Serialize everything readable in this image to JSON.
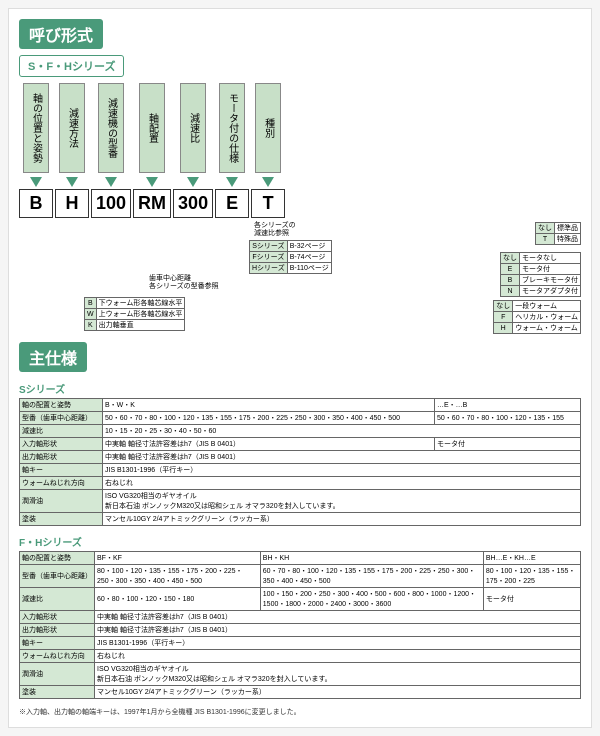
{
  "title1": "呼び形式",
  "series_label": "S・F・Hシリーズ",
  "columns": [
    {
      "head": "軸の位置と姿勢",
      "val": "B"
    },
    {
      "head": "減速方法",
      "val": "H"
    },
    {
      "head": "減速機の型番",
      "val": "100"
    },
    {
      "head": "軸配置",
      "val": "RM"
    },
    {
      "head": "減速比",
      "val": "300"
    },
    {
      "head": "モータ付の仕様",
      "val": "E"
    },
    {
      "head": "種別",
      "val": "T"
    }
  ],
  "tbl_kind": [
    [
      "なし",
      "標準品"
    ],
    [
      "T",
      "特殊品"
    ]
  ],
  "tbl_motor": [
    [
      "なし",
      "モータなし"
    ],
    [
      "E",
      "モータ付"
    ],
    [
      "B",
      "ブレーキモータ付"
    ],
    [
      "N",
      "モータアダプタ付"
    ]
  ],
  "tbl_method": [
    [
      "なし",
      "一段ウォーム"
    ],
    [
      "F",
      "ヘリカル・ウォーム"
    ],
    [
      "H",
      "ウォーム・ウォーム"
    ]
  ],
  "tbl_pages": [
    [
      "Sシリーズ",
      "B-32ページ"
    ],
    [
      "Fシリーズ",
      "B-74ページ"
    ],
    [
      "Hシリーズ",
      "B-110ページ"
    ]
  ],
  "tbl_axis": [
    [
      "B",
      "下ウォーム形各軸芯線水平"
    ],
    [
      "W",
      "上ウォーム形各軸芯線水平"
    ],
    [
      "K",
      "出力軸垂直"
    ]
  ],
  "note_ratio": "各シリーズの\n減速比参照",
  "note_model": "歯車中心距離\n各シリーズの型番参照",
  "title2": "主仕様",
  "s_label": "Sシリーズ",
  "s_rows": [
    {
      "h": "軸の配置と姿勢",
      "c": [
        "B・W・K",
        "",
        "…E・…B"
      ]
    },
    {
      "h": "型番（歯車中心距離）",
      "c": [
        "50・60・70・80・100・120・135・155・175・200・225・250・300・350・400・450・500",
        "",
        "50・60・70・80・100・120・135・155"
      ]
    },
    {
      "h": "減速比",
      "c": [
        "10・15・20・25・30・40・50・60",
        "",
        ""
      ]
    },
    {
      "h": "入力軸形状",
      "c": [
        "中実軸 軸径寸法許容差はh7（JIS B 0401）",
        "",
        "モータ付"
      ]
    },
    {
      "h": "出力軸形状",
      "c": [
        "中実軸 軸径寸法許容差はh7（JIS B 0401）",
        "",
        ""
      ]
    },
    {
      "h": "軸キー",
      "c": [
        "JIS B1301-1996（平行キー）",
        "",
        ""
      ]
    },
    {
      "h": "ウォームねじれ方向",
      "c": [
        "右ねじれ",
        "",
        ""
      ]
    },
    {
      "h": "潤滑油",
      "c": [
        "ISO VG320相当のギヤオイル\n新日本石油 ボンノックM320又は昭和シェル オマラ320を封入しています。",
        "",
        ""
      ]
    },
    {
      "h": "塗装",
      "c": [
        "マンセル10GY 2/4アトミックグリーン（ラッカー系）",
        "",
        ""
      ]
    }
  ],
  "fh_label": "F・Hシリーズ",
  "fh_rows": [
    {
      "h": "軸の配置と姿勢",
      "c": [
        "BF・KF",
        "BH・KH",
        "BH…E・KH…E"
      ]
    },
    {
      "h": "型番（歯車中心距離）",
      "c": [
        "80・100・120・135・155・175・200・225・250・300・350・400・450・500",
        "60・70・80・100・120・135・155・175・200・225・250・300・350・400・450・500",
        "80・100・120・135・155・175・200・225"
      ]
    },
    {
      "h": "減速比",
      "c": [
        "60・80・100・120・150・180",
        "100・150・200・250・300・400・500・600・800・1000・1200・1500・1800・2000・2400・3000・3600",
        "モータ付"
      ]
    },
    {
      "h": "入力軸形状",
      "c": [
        "中実軸 軸径寸法許容差はh7（JIS B 0401）",
        "",
        ""
      ]
    },
    {
      "h": "出力軸形状",
      "c": [
        "中実軸 軸径寸法許容差はh7（JIS B 0401）",
        "",
        ""
      ]
    },
    {
      "h": "軸キー",
      "c": [
        "JIS B1301-1996（平行キー）",
        "",
        ""
      ]
    },
    {
      "h": "ウォームねじれ方向",
      "c": [
        "右ねじれ",
        "",
        ""
      ]
    },
    {
      "h": "潤滑油",
      "c": [
        "ISO VG320相当のギヤオイル\n新日本石油 ボンノックM320又は昭和シェル オマラ320を封入しています。",
        "",
        ""
      ]
    },
    {
      "h": "塗装",
      "c": [
        "マンセル10GY 2/4アトミックグリーン（ラッカー系）",
        "",
        ""
      ]
    }
  ],
  "footnote": "※入力軸、出力軸の軸端キーは、1997年1月から全機種 JIS B1301-1996に変更しました。"
}
